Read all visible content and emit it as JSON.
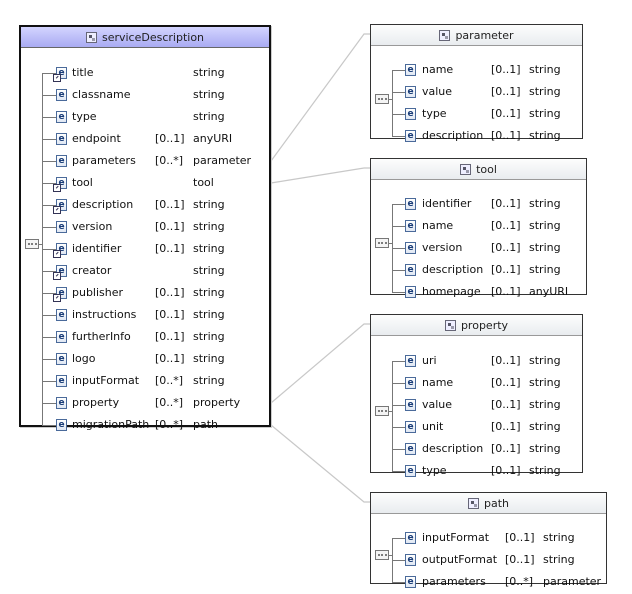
{
  "diagram": {
    "root": {
      "name": "serviceDescription",
      "elements": [
        {
          "name": "title",
          "card": "",
          "type": "string",
          "ref": true
        },
        {
          "name": "classname",
          "card": "",
          "type": "string",
          "ref": false
        },
        {
          "name": "type",
          "card": "",
          "type": "string",
          "ref": false
        },
        {
          "name": "endpoint",
          "card": "[0..1]",
          "type": "anyURI",
          "ref": false
        },
        {
          "name": "parameters",
          "card": "[0..*]",
          "type": "parameter",
          "ref": false
        },
        {
          "name": "tool",
          "card": "",
          "type": "tool",
          "ref": true
        },
        {
          "name": "description",
          "card": "[0..1]",
          "type": "string",
          "ref": true
        },
        {
          "name": "version",
          "card": "[0..1]",
          "type": "string",
          "ref": false
        },
        {
          "name": "identifier",
          "card": "[0..1]",
          "type": "string",
          "ref": true
        },
        {
          "name": "creator",
          "card": "",
          "type": "string",
          "ref": true
        },
        {
          "name": "publisher",
          "card": "[0..1]",
          "type": "string",
          "ref": true
        },
        {
          "name": "instructions",
          "card": "[0..1]",
          "type": "string",
          "ref": false
        },
        {
          "name": "furtherInfo",
          "card": "[0..1]",
          "type": "string",
          "ref": false
        },
        {
          "name": "logo",
          "card": "[0..1]",
          "type": "string",
          "ref": false
        },
        {
          "name": "inputFormat",
          "card": "[0..*]",
          "type": "string",
          "ref": false
        },
        {
          "name": "property",
          "card": "[0..*]",
          "type": "property",
          "ref": false
        },
        {
          "name": "migrationPath",
          "card": "[0..*]",
          "type": "path",
          "ref": false
        }
      ]
    },
    "types": [
      {
        "name": "parameter",
        "elements": [
          {
            "name": "name",
            "card": "[0..1]",
            "type": "string"
          },
          {
            "name": "value",
            "card": "[0..1]",
            "type": "string"
          },
          {
            "name": "type",
            "card": "[0..1]",
            "type": "string"
          },
          {
            "name": "description",
            "card": "[0..1]",
            "type": "string"
          }
        ]
      },
      {
        "name": "tool",
        "elements": [
          {
            "name": "identifier",
            "card": "[0..1]",
            "type": "string"
          },
          {
            "name": "name",
            "card": "[0..1]",
            "type": "string"
          },
          {
            "name": "version",
            "card": "[0..1]",
            "type": "string"
          },
          {
            "name": "description",
            "card": "[0..1]",
            "type": "string"
          },
          {
            "name": "homepage",
            "card": "[0..1]",
            "type": "anyURI"
          }
        ]
      },
      {
        "name": "property",
        "elements": [
          {
            "name": "uri",
            "card": "[0..1]",
            "type": "string"
          },
          {
            "name": "name",
            "card": "[0..1]",
            "type": "string"
          },
          {
            "name": "value",
            "card": "[0..1]",
            "type": "string"
          },
          {
            "name": "unit",
            "card": "[0..1]",
            "type": "string"
          },
          {
            "name": "description",
            "card": "[0..1]",
            "type": "string"
          },
          {
            "name": "type",
            "card": "[0..1]",
            "type": "string"
          }
        ]
      },
      {
        "name": "path",
        "elements": [
          {
            "name": "inputFormat",
            "card": "[0..1]",
            "type": "string"
          },
          {
            "name": "outputFormat",
            "card": "[0..1]",
            "type": "string"
          },
          {
            "name": "parameters",
            "card": "[0..*]",
            "type": "parameter"
          }
        ]
      }
    ],
    "links": [
      {
        "from": "parameters",
        "to": "parameter"
      },
      {
        "from": "tool",
        "to": "tool"
      },
      {
        "from": "property",
        "to": "property"
      },
      {
        "from": "migrationPath",
        "to": "path"
      }
    ],
    "icons": {
      "element": "e",
      "sequence": "sequence-icon",
      "complex_type": "complex-type-icon"
    },
    "colors": {
      "main_header_top": "#d3d4ff",
      "main_header_bottom": "#a9abf2",
      "element_icon": "#1a3d78",
      "connector": "#c8c8c8"
    }
  }
}
